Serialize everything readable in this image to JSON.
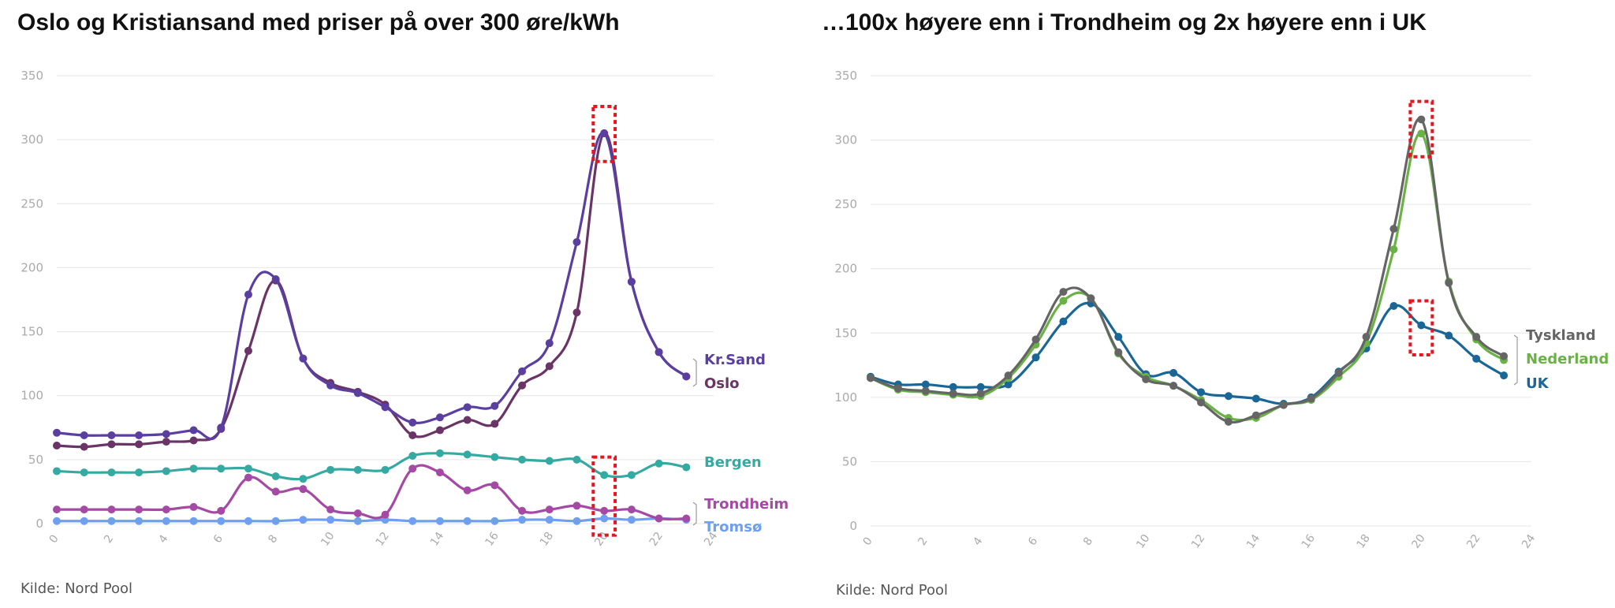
{
  "chart_data": [
    {
      "type": "line",
      "title": "Oslo og Kristiansand med priser på over 300 øre/kWh",
      "source": "Kilde: Nord Pool",
      "xlim": [
        0,
        24
      ],
      "xticks": [
        0,
        2,
        4,
        6,
        8,
        10,
        12,
        14,
        16,
        18,
        20,
        22,
        24
      ],
      "ylim": [
        0,
        350
      ],
      "yticks": [
        0,
        50,
        100,
        150,
        200,
        250,
        300,
        350
      ],
      "grid": true,
      "x": [
        0,
        1,
        2,
        3,
        4,
        5,
        6,
        7,
        8,
        9,
        10,
        11,
        12,
        13,
        14,
        15,
        16,
        17,
        18,
        19,
        20,
        21,
        22,
        23
      ],
      "series": [
        {
          "name": "Kr.Sand",
          "color": "#5b3fa0",
          "values": [
            71,
            69,
            69,
            69,
            70,
            73,
            75,
            179,
            191,
            129,
            108,
            102,
            91,
            79,
            83,
            91,
            92,
            119,
            141,
            220,
            305,
            189,
            134,
            115
          ]
        },
        {
          "name": "Oslo",
          "color": "#6a3466",
          "values": [
            61,
            60,
            62,
            62,
            64,
            65,
            74,
            135,
            190,
            129,
            110,
            103,
            93,
            69,
            73,
            81,
            78,
            108,
            123,
            165,
            305,
            189,
            134,
            115
          ]
        },
        {
          "name": "Bergen",
          "color": "#35aaa2",
          "values": [
            41,
            40,
            40,
            40,
            41,
            43,
            43,
            43,
            37,
            35,
            42,
            42,
            42,
            53,
            55,
            54,
            52,
            50,
            49,
            50,
            38,
            38,
            47,
            44
          ]
        },
        {
          "name": "Trondheim",
          "color": "#a54aa4",
          "values": [
            11,
            11,
            11,
            11,
            11,
            13,
            10,
            36,
            25,
            27,
            11,
            8,
            7,
            43,
            40,
            26,
            30,
            10,
            11,
            14,
            10,
            11,
            4,
            4
          ]
        },
        {
          "name": "Tromsø",
          "color": "#6e9ff0",
          "values": [
            2,
            2,
            2,
            2,
            2,
            2,
            2,
            2,
            2,
            3,
            3,
            2,
            3,
            2,
            2,
            2,
            2,
            3,
            3,
            2,
            4,
            3,
            4,
            3
          ]
        }
      ],
      "labels": [
        {
          "text": "Kr.Sand",
          "color": "#5b3fa0"
        },
        {
          "text": "Oslo",
          "color": "#6a3466"
        },
        {
          "text": "Bergen",
          "color": "#35aaa2"
        },
        {
          "text": "Trondheim",
          "color": "#a54aa4"
        },
        {
          "text": "Tromsø",
          "color": "#6e9ff0"
        }
      ],
      "highlights": [
        {
          "x": [
            19.6,
            20.4
          ],
          "y": [
            283,
            326
          ]
        },
        {
          "x": [
            19.6,
            20.4
          ],
          "y": [
            -9,
            52
          ]
        }
      ]
    },
    {
      "type": "line",
      "title": "…100x høyere enn i Trondheim og 2x høyere enn i UK",
      "source": "Kilde: Nord Pool",
      "xlim": [
        0,
        24
      ],
      "xticks": [
        0,
        2,
        4,
        6,
        8,
        10,
        12,
        14,
        16,
        18,
        20,
        22,
        24
      ],
      "ylim": [
        0,
        350
      ],
      "yticks": [
        0,
        50,
        100,
        150,
        200,
        250,
        300,
        350
      ],
      "grid": true,
      "x": [
        0,
        1,
        2,
        3,
        4,
        5,
        6,
        7,
        8,
        9,
        10,
        11,
        12,
        13,
        14,
        15,
        16,
        17,
        18,
        19,
        20,
        21,
        22,
        23
      ],
      "series": [
        {
          "name": "Tyskland",
          "color": "#656565",
          "values": [
            115,
            107,
            105,
            103,
            103,
            117,
            145,
            182,
            177,
            135,
            114,
            109,
            96,
            81,
            86,
            94,
            99,
            119,
            147,
            231,
            316,
            189,
            147,
            132
          ]
        },
        {
          "name": "Nederland",
          "color": "#6ab245",
          "values": [
            115,
            106,
            104,
            102,
            101,
            115,
            141,
            175,
            177,
            134,
            116,
            109,
            98,
            84,
            84,
            94,
            98,
            116,
            142,
            215,
            305,
            190,
            145,
            129
          ]
        },
        {
          "name": "UK",
          "color": "#1a6696",
          "values": [
            116,
            110,
            110,
            108,
            108,
            110,
            131,
            159,
            173,
            147,
            118,
            119,
            104,
            101,
            99,
            95,
            100,
            120,
            138,
            171,
            156,
            148,
            130,
            117
          ]
        }
      ],
      "labels": [
        {
          "text": "Tyskland",
          "color": "#656565"
        },
        {
          "text": "Nederland",
          "color": "#6ab245"
        },
        {
          "text": "UK",
          "color": "#1a6696"
        }
      ],
      "highlights": [
        {
          "x": [
            19.6,
            20.4
          ],
          "y": [
            287,
            330
          ]
        },
        {
          "x": [
            19.6,
            20.4
          ],
          "y": [
            133,
            175
          ]
        }
      ]
    }
  ]
}
